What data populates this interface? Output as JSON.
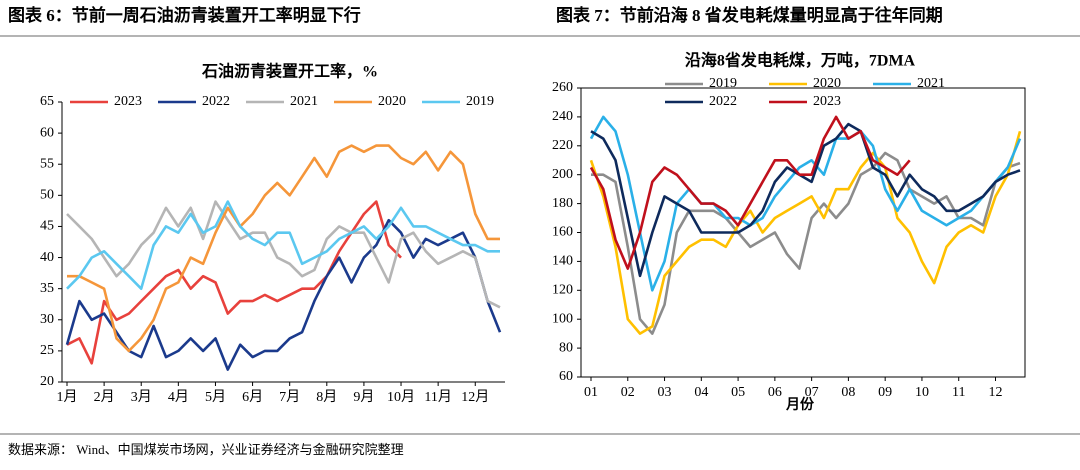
{
  "source": "数据来源： Wind、中国煤炭市场网，兴业证券经济与金融研究院整理",
  "chart_data": [
    {
      "type": "line",
      "caption": "图表 6：节前一周石油沥青装置开工率明显下行",
      "title": "石油沥青装置开工率，%",
      "categories": [
        "1月",
        null,
        null,
        "2月",
        null,
        null,
        "3月",
        null,
        null,
        "4月",
        null,
        null,
        "5月",
        null,
        null,
        "6月",
        null,
        null,
        "7月",
        null,
        null,
        "8月",
        null,
        null,
        "9月",
        null,
        null,
        "10月",
        null,
        null,
        "11月",
        null,
        null,
        "12月",
        null,
        null
      ],
      "ylim": [
        20,
        65
      ],
      "yticks": [
        20,
        25,
        30,
        35,
        40,
        45,
        50,
        55,
        60,
        65
      ],
      "legend": "top",
      "series": [
        {
          "name": "2023",
          "color": "#e8413c",
          "values": [
            26,
            27,
            23,
            33,
            30,
            31,
            33,
            35,
            37,
            38,
            35,
            37,
            36,
            31,
            33,
            33,
            34,
            33,
            34,
            35,
            35,
            37,
            41,
            44,
            47,
            49,
            42,
            40,
            null,
            null,
            null,
            null,
            null,
            null,
            null,
            null
          ]
        },
        {
          "name": "2022",
          "color": "#1b3a8c",
          "values": [
            26,
            33,
            30,
            31,
            28,
            25,
            24,
            29,
            24,
            25,
            27,
            25,
            27,
            22,
            26,
            24,
            25,
            25,
            27,
            28,
            33,
            37,
            40,
            36,
            40,
            42,
            46,
            44,
            40,
            43,
            42,
            43,
            44,
            40,
            33,
            28
          ]
        },
        {
          "name": "2021",
          "color": "#b5b5b5",
          "values": [
            47,
            45,
            43,
            40,
            37,
            39,
            42,
            44,
            48,
            45,
            48,
            43,
            49,
            46,
            43,
            44,
            44,
            40,
            39,
            37,
            38,
            43,
            45,
            44,
            44,
            40,
            36,
            43,
            44,
            41,
            39,
            40,
            41,
            40,
            33,
            32
          ]
        },
        {
          "name": "2020",
          "color": "#f5963a",
          "values": [
            37,
            37,
            36,
            35,
            27,
            25,
            27,
            30,
            35,
            36,
            40,
            39,
            44,
            48,
            45,
            47,
            50,
            52,
            50,
            53,
            56,
            53,
            57,
            58,
            57,
            58,
            58,
            56,
            55,
            57,
            54,
            57,
            55,
            47,
            43,
            43
          ]
        },
        {
          "name": "2019",
          "color": "#5bc8f0",
          "values": [
            35,
            37,
            40,
            41,
            39,
            37,
            35,
            42,
            45,
            44,
            47,
            44,
            45,
            49,
            45,
            43,
            42,
            44,
            44,
            39,
            40,
            41,
            43,
            44,
            45,
            43,
            45,
            48,
            45,
            45,
            44,
            43,
            42,
            42,
            41,
            41
          ]
        }
      ]
    },
    {
      "type": "line",
      "caption": "图表 7：节前沿海 8 省发电耗煤量明显高于往年同期",
      "title": "沿海8省发电耗煤，万吨，7DMA",
      "xlabel": "月份",
      "categories": [
        "01",
        null,
        null,
        "02",
        null,
        null,
        "03",
        null,
        null,
        "04",
        null,
        null,
        "05",
        null,
        null,
        "06",
        null,
        null,
        "07",
        null,
        null,
        "08",
        null,
        null,
        "09",
        null,
        null,
        "10",
        null,
        null,
        "11",
        null,
        null,
        "12",
        null,
        null
      ],
      "ylim": [
        60,
        260
      ],
      "yticks": [
        60,
        80,
        100,
        120,
        140,
        160,
        180,
        200,
        220,
        240,
        260
      ],
      "legend": "top",
      "series": [
        {
          "name": "2019",
          "color": "#8c8c8c",
          "values": [
            200,
            200,
            195,
            150,
            100,
            90,
            110,
            160,
            175,
            175,
            175,
            170,
            160,
            150,
            155,
            160,
            145,
            135,
            170,
            180,
            170,
            180,
            200,
            205,
            215,
            210,
            190,
            185,
            180,
            185,
            170,
            170,
            165,
            195,
            205,
            208
          ]
        },
        {
          "name": "2020",
          "color": "#ffc000",
          "values": [
            210,
            185,
            150,
            100,
            90,
            95,
            130,
            140,
            150,
            155,
            155,
            150,
            165,
            175,
            160,
            170,
            175,
            180,
            185,
            170,
            190,
            190,
            205,
            215,
            205,
            170,
            160,
            140,
            125,
            150,
            160,
            165,
            160,
            185,
            200,
            230
          ]
        },
        {
          "name": "2021",
          "color": "#2ab0e8",
          "values": [
            225,
            240,
            230,
            200,
            160,
            120,
            140,
            180,
            190,
            180,
            180,
            170,
            170,
            165,
            170,
            185,
            195,
            205,
            210,
            200,
            225,
            225,
            230,
            220,
            190,
            175,
            190,
            175,
            170,
            165,
            170,
            175,
            185,
            195,
            205,
            225
          ]
        },
        {
          "name": "2022",
          "color": "#0e2a5c",
          "values": [
            230,
            225,
            210,
            170,
            130,
            160,
            185,
            180,
            175,
            160,
            160,
            160,
            160,
            165,
            175,
            195,
            205,
            200,
            195,
            220,
            225,
            235,
            230,
            205,
            200,
            185,
            200,
            190,
            185,
            175,
            175,
            180,
            185,
            195,
            200,
            203
          ]
        },
        {
          "name": "2023",
          "color": "#c0101c",
          "values": [
            205,
            190,
            155,
            135,
            160,
            195,
            205,
            200,
            190,
            180,
            180,
            175,
            165,
            180,
            195,
            210,
            210,
            200,
            200,
            225,
            240,
            225,
            230,
            210,
            205,
            200,
            210,
            null,
            null,
            null,
            null,
            null,
            null,
            null,
            null,
            null
          ]
        }
      ]
    }
  ]
}
